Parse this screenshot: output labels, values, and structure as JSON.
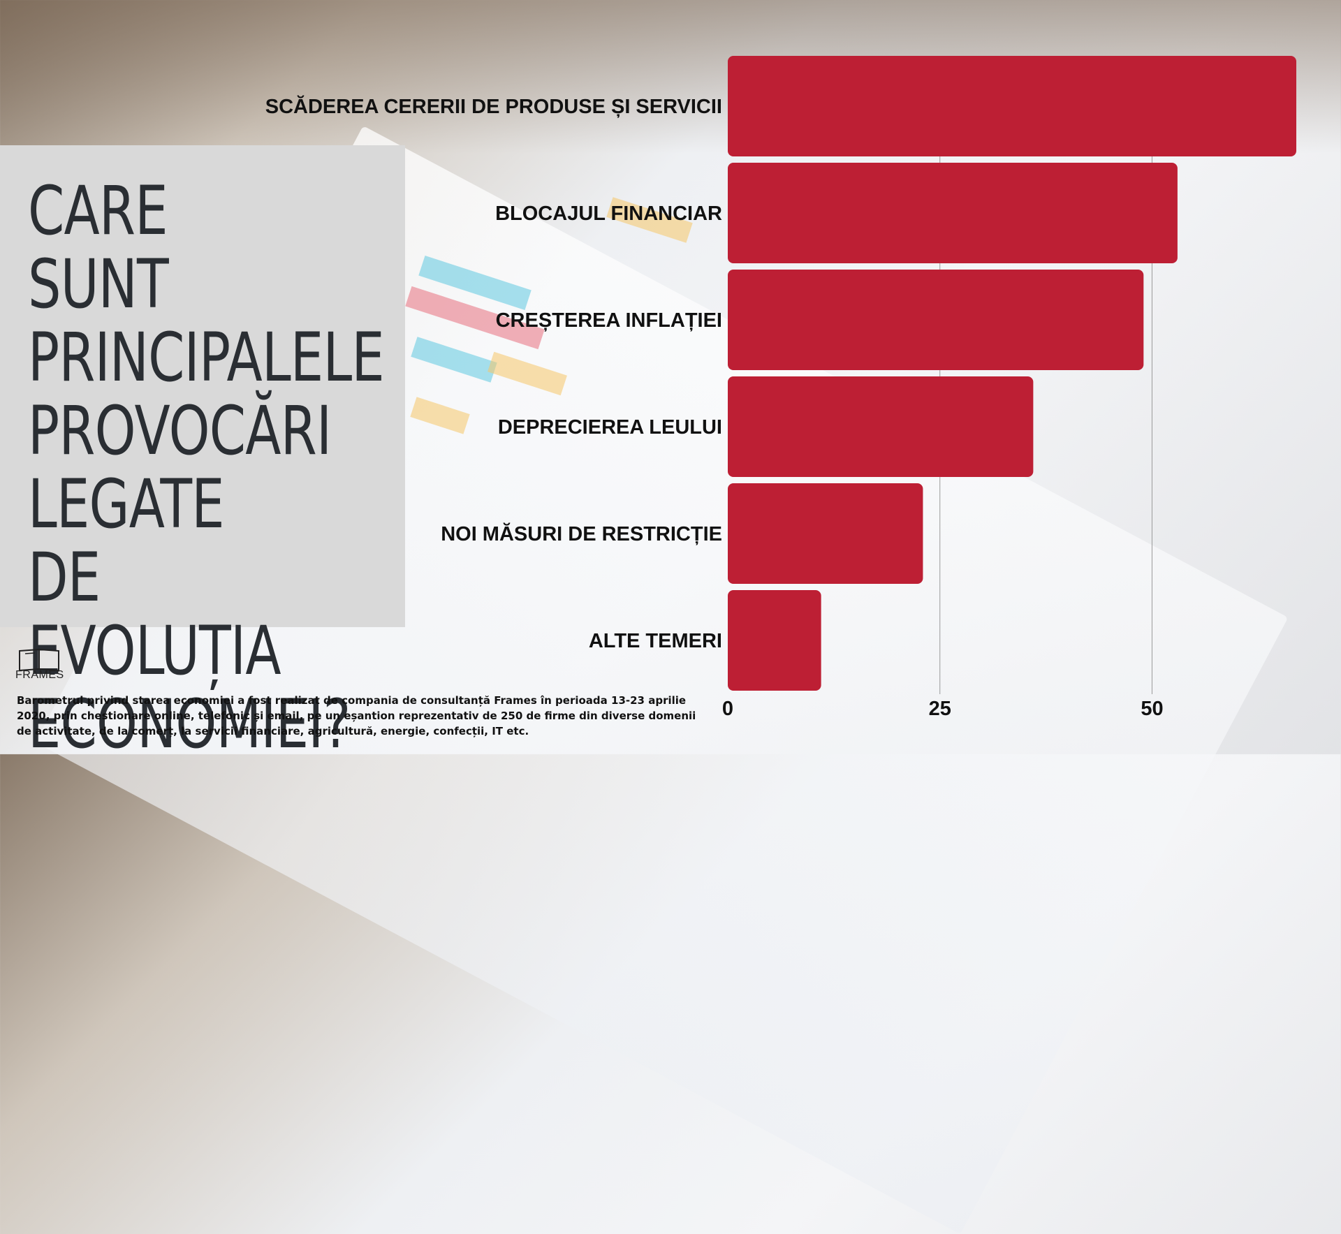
{
  "title": "CARE SUNT PRINCIPALELE PROVOCĂRI LEGATE DE EVOLUȚIA ECONOMIEI?",
  "logo": {
    "text": "FRAMES"
  },
  "footnote": "Barometrul privind starea economiei a fost realizat de compania de consultanță Frames în perioada 13-23 aprilie 2020, prin chestionare online, telefonic și email, pe un eșantion reprezentativ de 250 de firme din diverse domenii de activitate, de la comerț, la servicii financiare, agricultură, energie, confecții, IT etc.",
  "colors": {
    "bar": "#bd1f34",
    "panel": "#d9d9d9",
    "title": "#2a2e33"
  },
  "chart_data": {
    "type": "bar",
    "orientation": "horizontal",
    "categories": [
      "SCĂDEREA CERERII DE PRODUSE ȘI SERVICII",
      "BLOCAJUL FINANCIAR",
      "CREȘTEREA INFLAȚIEI",
      "DEPRECIEREA LEULUI",
      "NOI MĂSURI DE RESTRICȚIE",
      "ALTE TEMERI"
    ],
    "values": [
      67,
      53,
      49,
      36,
      23,
      11
    ],
    "xlim": [
      0,
      67
    ],
    "xticks": [
      0,
      25,
      50
    ],
    "grid": true,
    "title": "",
    "xlabel": "",
    "ylabel": ""
  }
}
